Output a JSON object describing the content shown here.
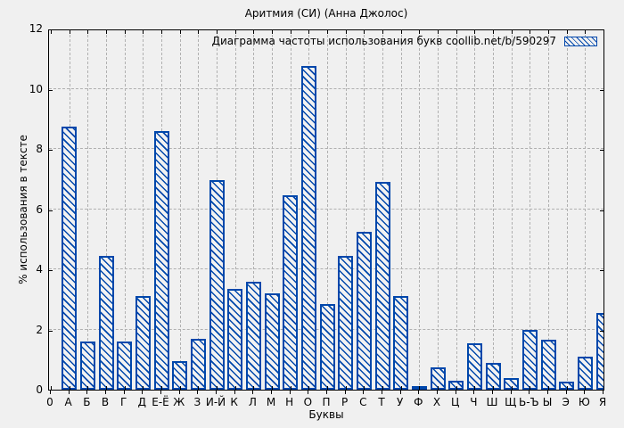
{
  "chart_data": {
    "type": "bar",
    "title": "Аритмия (СИ) (Анна Джолос)",
    "legend_label": "Диаграмма частоты использования букв coollib.net/b/590297",
    "xlabel": "Буквы",
    "ylabel": "% использования в тексте",
    "ylim": [
      0,
      12
    ],
    "yticks": [
      0,
      2,
      4,
      6,
      8,
      10,
      12
    ],
    "grid": "dashed",
    "legend_position": "top-right-inside",
    "categories": [
      "0",
      "А",
      "Б",
      "В",
      "Г",
      "Д",
      "Е-Ё",
      "Ж",
      "З",
      "И-Й",
      "К",
      "Л",
      "М",
      "Н",
      "О",
      "П",
      "Р",
      "С",
      "Т",
      "У",
      "Ф",
      "Х",
      "Ц",
      "Ч",
      "Ш",
      "Щ",
      "Ь-Ъ",
      "Ы",
      "Э",
      "Ю",
      "Я"
    ],
    "values": [
      0,
      8.75,
      1.6,
      4.45,
      1.6,
      3.1,
      8.6,
      0.95,
      1.7,
      6.95,
      3.35,
      3.6,
      3.2,
      6.45,
      10.75,
      2.85,
      4.45,
      5.25,
      6.9,
      3.1,
      0.12,
      0.75,
      0.3,
      1.55,
      0.9,
      0.4,
      2.0,
      1.65,
      0.28,
      1.1,
      2.55
    ]
  },
  "colors": {
    "bar_edge": "#0047ab",
    "bar_hatch": "#0047ab",
    "bar_fill": "#f2f2f2",
    "background": "#f0f0f0",
    "grid": "#b0b0b0",
    "frame": "#000000",
    "text": "#000000"
  }
}
